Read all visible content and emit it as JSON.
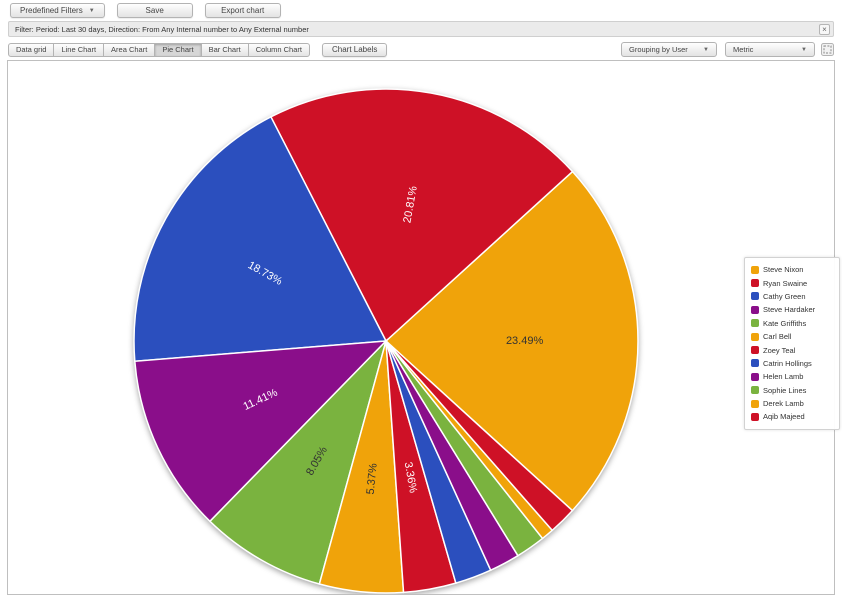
{
  "toolbar_top": {
    "predefined_filters": "Predefined Filters",
    "save": "Save",
    "export_chart": "Export chart"
  },
  "filter_bar": {
    "text": "Filter: Period: Last 30 days, Direction: From Any Internal number to Any External number",
    "close_icon": "×"
  },
  "chart_toolbar": {
    "view_buttons": [
      "Data grid",
      "Line Chart",
      "Area Chart",
      "Pie Chart",
      "Bar Chart",
      "Column Chart"
    ],
    "active_view": "Pie Chart",
    "labels_button": "Chart Labels",
    "grouping_dropdown": "Grouping by User",
    "metric_dropdown": "Metric"
  },
  "colors": {
    "orange": "#F0A30A",
    "red": "#CE1126",
    "blue": "#2B4FBE",
    "purple": "#8A0E8A",
    "green": "#7AB33F"
  },
  "chart_data": {
    "type": "pie",
    "legend_position": "right",
    "start_angle_deg": -42.3,
    "direction": "counterclockwise",
    "slices": [
      {
        "name": "Steve Nixon",
        "percent": 23.49,
        "color": "#F0A30A",
        "label_color": "#333333",
        "labeled": true
      },
      {
        "name": "Ryan Swaine",
        "percent": 20.81,
        "color": "#CE1126",
        "label_color": "#FFFFFF",
        "labeled": true
      },
      {
        "name": "Cathy Green",
        "percent": 18.73,
        "color": "#2B4FBE",
        "label_color": "#FFFFFF",
        "labeled": true
      },
      {
        "name": "Steve Hardaker",
        "percent": 11.41,
        "color": "#8A0E8A",
        "label_color": "#FFFFFF",
        "labeled": true
      },
      {
        "name": "Kate Griffiths",
        "percent": 8.05,
        "color": "#7AB33F",
        "label_color": "#333333",
        "labeled": true
      },
      {
        "name": "Carl Bell",
        "percent": 5.37,
        "color": "#F0A30A",
        "label_color": "#333333",
        "labeled": true
      },
      {
        "name": "Zoey Teal",
        "percent": 3.36,
        "color": "#CE1126",
        "label_color": "#FFFFFF",
        "labeled": true
      },
      {
        "name": "Catrin Hollings",
        "percent": 2.35,
        "color": "#2B4FBE",
        "label_color": "#FFFFFF",
        "labeled": false
      },
      {
        "name": "Helen Lamb",
        "percent": 1.95,
        "color": "#8A0E8A",
        "label_color": "#FFFFFF",
        "labeled": false
      },
      {
        "name": "Sophie Lines",
        "percent": 1.9,
        "color": "#7AB33F",
        "label_color": "#333333",
        "labeled": false
      },
      {
        "name": "Derek Lamb",
        "percent": 0.8,
        "color": "#F0A30A",
        "label_color": "#333333",
        "labeled": false
      },
      {
        "name": "Aqib Majeed",
        "percent": 1.78,
        "color": "#CE1126",
        "label_color": "#FFFFFF",
        "labeled": false
      }
    ]
  }
}
